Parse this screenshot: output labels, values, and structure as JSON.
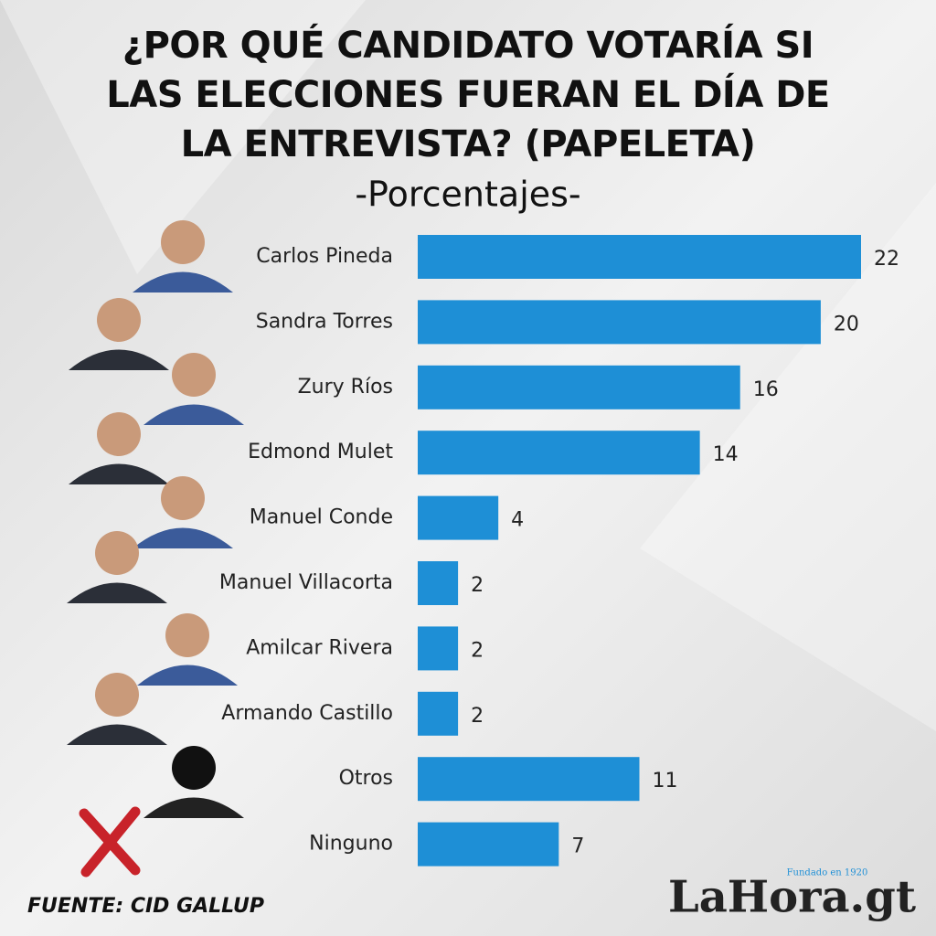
{
  "chart_data": {
    "type": "bar",
    "orientation": "horizontal",
    "title": [
      "¿POR QUÉ CANDIDATO VOTARÍA SI",
      "LAS ELECCIONES FUERAN EL DÍA DE",
      "LA ENTREVISTA? (PAPELETA)"
    ],
    "subtitle": "-Porcentajes-",
    "categories": [
      "Carlos Pineda",
      "Sandra Torres",
      "Zury Ríos",
      "Edmond Mulet",
      "Manuel Conde",
      "Manuel Villacorta",
      "Amilcar Rivera",
      "Armando Castillo",
      "Otros",
      "Ninguno"
    ],
    "values": [
      22,
      20,
      16,
      14,
      4,
      2,
      2,
      2,
      11,
      7
    ],
    "color": "#1e8fd6",
    "source": "FUENTE: CID GALLUP",
    "logo": {
      "name": "LaHora.gt",
      "tagline": "Fundado en 1920"
    }
  }
}
